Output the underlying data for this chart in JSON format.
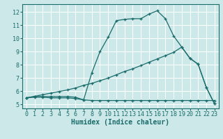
{
  "bg_color": "#cce8e8",
  "grid_color": "#ffffff",
  "line_color": "#1a6b6b",
  "xlabel": "Humidex (Indice chaleur)",
  "xlabel_fontsize": 7,
  "tick_fontsize": 6,
  "xlim": [
    -0.5,
    23.5
  ],
  "ylim": [
    4.7,
    12.6
  ],
  "yticks": [
    5,
    6,
    7,
    8,
    9,
    10,
    11,
    12
  ],
  "xticks": [
    0,
    1,
    2,
    3,
    4,
    5,
    6,
    7,
    8,
    9,
    10,
    11,
    12,
    13,
    14,
    15,
    16,
    17,
    18,
    19,
    20,
    21,
    22,
    23
  ],
  "curve1_x": [
    0,
    1,
    2,
    3,
    4,
    5,
    6,
    7,
    8,
    9,
    10,
    11,
    12,
    13,
    14,
    15,
    16,
    17,
    18,
    19,
    20,
    21,
    22,
    23
  ],
  "curve1_y": [
    5.5,
    5.6,
    5.6,
    5.6,
    5.6,
    5.6,
    5.55,
    5.35,
    7.4,
    9.0,
    10.1,
    11.35,
    11.45,
    11.5,
    11.5,
    11.85,
    12.1,
    11.5,
    10.2,
    9.35,
    8.5,
    8.05,
    6.3,
    5.05
  ],
  "curve2_x": [
    0,
    1,
    2,
    3,
    4,
    5,
    6,
    7,
    8,
    9,
    10,
    11,
    12,
    13,
    14,
    15,
    16,
    17,
    18,
    19,
    20,
    21,
    22,
    23
  ],
  "curve2_y": [
    5.5,
    5.62,
    5.74,
    5.86,
    5.98,
    6.1,
    6.25,
    6.45,
    6.6,
    6.8,
    7.0,
    7.25,
    7.5,
    7.7,
    7.95,
    8.2,
    8.45,
    8.7,
    8.95,
    9.35,
    8.5,
    8.05,
    6.3,
    5.05
  ],
  "curve3_x": [
    0,
    1,
    2,
    3,
    4,
    5,
    6,
    7,
    8,
    9,
    10,
    11,
    12,
    13,
    14,
    15,
    16,
    17,
    18,
    19,
    20,
    21,
    22,
    23
  ],
  "curve3_y": [
    5.5,
    5.55,
    5.55,
    5.5,
    5.5,
    5.5,
    5.45,
    5.35,
    5.3,
    5.3,
    5.3,
    5.3,
    5.3,
    5.3,
    5.3,
    5.3,
    5.3,
    5.3,
    5.3,
    5.3,
    5.3,
    5.3,
    5.3,
    5.3
  ]
}
